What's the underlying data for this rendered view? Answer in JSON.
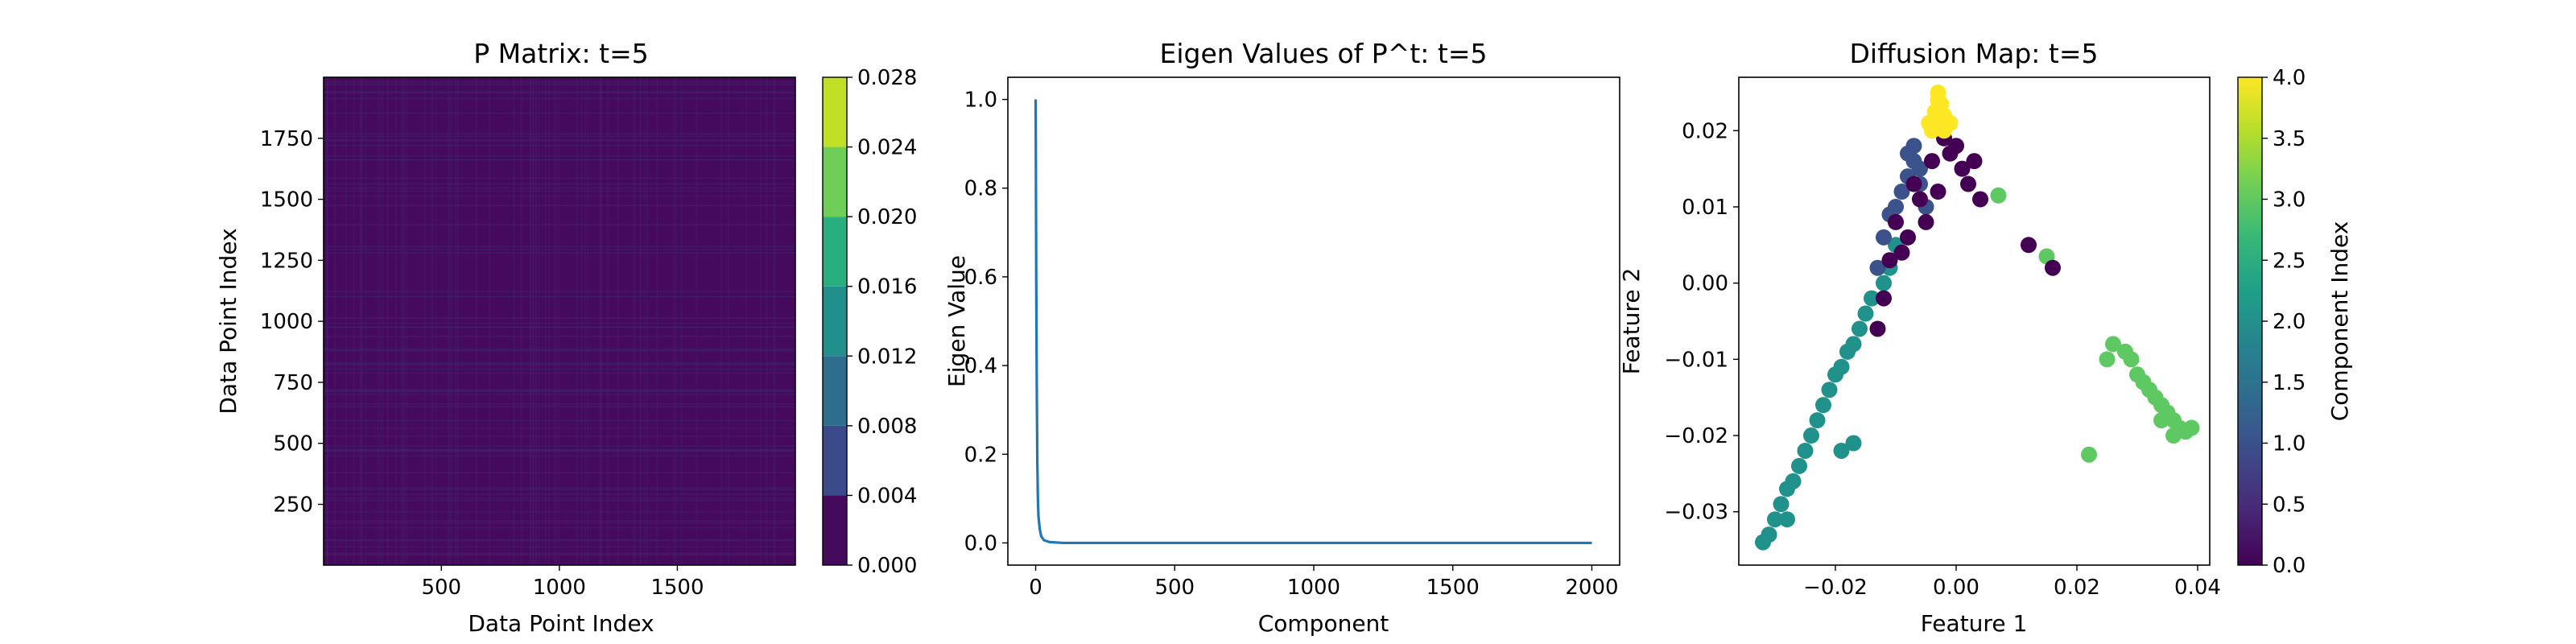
{
  "chart_data": [
    {
      "type": "heatmap",
      "title": "P Matrix: t=5",
      "xlabel": "Data Point Index",
      "ylabel": "Data Point Index",
      "xlim": [
        1,
        2000
      ],
      "ylim": [
        1,
        2000
      ],
      "xticks": [
        500,
        1000,
        1500
      ],
      "yticks": [
        250,
        500,
        750,
        1000,
        1250,
        1500,
        1750
      ],
      "matrix_size": 2000,
      "fill_value_range": [
        0.0,
        0.004
      ],
      "colorbar": {
        "label": "",
        "range": [
          0.0,
          0.028
        ],
        "levels": [
          0.0,
          0.004,
          0.008,
          0.012,
          0.016,
          0.02,
          0.024,
          0.028
        ],
        "tick_labels": [
          "0.000",
          "0.004",
          "0.008",
          "0.012",
          "0.016",
          "0.020",
          "0.024",
          "0.028"
        ],
        "colors": [
          "#450a5c",
          "#3a4a8a",
          "#2d6e8e",
          "#21908c",
          "#29af7f",
          "#6ece58",
          "#c1df24"
        ]
      }
    },
    {
      "type": "line",
      "title": "Eigen Values of P^t: t=5",
      "xlabel": "Component",
      "ylabel": "Eigen Value",
      "xlim": [
        -100,
        2100
      ],
      "ylim": [
        -0.05,
        1.05
      ],
      "xticks": [
        0,
        500,
        1000,
        1500,
        2000
      ],
      "yticks": [
        0.0,
        0.2,
        0.4,
        0.6,
        0.8,
        1.0
      ],
      "ytick_labels": [
        "0.0",
        "0.2",
        "0.4",
        "0.6",
        "0.8",
        "1.0"
      ],
      "color": "#1f77b4",
      "x": [
        0,
        2,
        4,
        6,
        8,
        10,
        15,
        20,
        30,
        50,
        100,
        500,
        1000,
        1500,
        2000
      ],
      "y": [
        1.0,
        0.6,
        0.35,
        0.18,
        0.1,
        0.06,
        0.03,
        0.015,
        0.006,
        0.002,
        0.0,
        0.0,
        0.0,
        0.0,
        0.0
      ]
    },
    {
      "type": "scatter",
      "title": "Diffusion Map: t=5",
      "xlabel": "Feature 1",
      "ylabel": "Feature 2",
      "xlim": [
        -0.036,
        0.042
      ],
      "ylim": [
        -0.037,
        0.027
      ],
      "xticks": [
        -0.02,
        0.0,
        0.02,
        0.04
      ],
      "xtick_labels": [
        "−0.02",
        "0.00",
        "0.02",
        "0.04"
      ],
      "yticks": [
        -0.03,
        -0.02,
        -0.01,
        0.0,
        0.01,
        0.02
      ],
      "ytick_labels": [
        "−0.03",
        "−0.02",
        "−0.01",
        "0.00",
        "0.01",
        "0.02"
      ],
      "series": [
        {
          "name": "0",
          "color": "#440154",
          "points": [
            [
              -0.004,
              0.016
            ],
            [
              -0.003,
              0.012
            ],
            [
              -0.001,
              0.017
            ],
            [
              0.001,
              0.015
            ],
            [
              0.002,
              0.013
            ],
            [
              0.004,
              0.011
            ],
            [
              -0.006,
              0.011
            ],
            [
              -0.005,
              0.008
            ],
            [
              -0.008,
              0.006
            ],
            [
              -0.01,
              0.008
            ],
            [
              -0.011,
              0.003
            ],
            [
              -0.012,
              -0.002
            ],
            [
              -0.013,
              -0.006
            ],
            [
              0.012,
              0.005
            ],
            [
              0.016,
              0.002
            ],
            [
              -0.002,
              0.019
            ],
            [
              0.0,
              0.018
            ],
            [
              -0.007,
              0.013
            ],
            [
              0.003,
              0.016
            ],
            [
              -0.009,
              0.004
            ]
          ]
        },
        {
          "name": "1",
          "color": "#3b528b",
          "points": [
            [
              -0.007,
              0.018
            ],
            [
              -0.006,
              0.015
            ],
            [
              -0.008,
              0.017
            ],
            [
              -0.009,
              0.012
            ],
            [
              -0.01,
              0.01
            ],
            [
              -0.012,
              0.006
            ],
            [
              -0.013,
              0.002
            ],
            [
              -0.011,
              0.009
            ],
            [
              -0.008,
              0.014
            ],
            [
              -0.006,
              0.013
            ],
            [
              -0.005,
              0.01
            ],
            [
              -0.007,
              0.016
            ]
          ]
        },
        {
          "name": "2",
          "color": "#21918c",
          "points": [
            [
              -0.032,
              -0.034
            ],
            [
              -0.031,
              -0.033
            ],
            [
              -0.03,
              -0.031
            ],
            [
              -0.029,
              -0.029
            ],
            [
              -0.028,
              -0.027
            ],
            [
              -0.027,
              -0.026
            ],
            [
              -0.026,
              -0.024
            ],
            [
              -0.025,
              -0.022
            ],
            [
              -0.024,
              -0.02
            ],
            [
              -0.023,
              -0.018
            ],
            [
              -0.022,
              -0.016
            ],
            [
              -0.021,
              -0.014
            ],
            [
              -0.02,
              -0.012
            ],
            [
              -0.019,
              -0.011
            ],
            [
              -0.018,
              -0.009
            ],
            [
              -0.017,
              -0.008
            ],
            [
              -0.016,
              -0.006
            ],
            [
              -0.015,
              -0.004
            ],
            [
              -0.014,
              -0.002
            ],
            [
              -0.012,
              0.0
            ],
            [
              -0.011,
              0.002
            ],
            [
              -0.01,
              0.005
            ],
            [
              -0.019,
              -0.022
            ],
            [
              -0.017,
              -0.021
            ],
            [
              -0.028,
              -0.031
            ]
          ]
        },
        {
          "name": "3",
          "color": "#5ec962",
          "points": [
            [
              0.026,
              -0.008
            ],
            [
              0.025,
              -0.01
            ],
            [
              0.028,
              -0.009
            ],
            [
              0.029,
              -0.01
            ],
            [
              0.03,
              -0.012
            ],
            [
              0.031,
              -0.013
            ],
            [
              0.032,
              -0.014
            ],
            [
              0.033,
              -0.015
            ],
            [
              0.034,
              -0.016
            ],
            [
              0.035,
              -0.017
            ],
            [
              0.036,
              -0.018
            ],
            [
              0.037,
              -0.019
            ],
            [
              0.038,
              -0.0195
            ],
            [
              0.039,
              -0.019
            ],
            [
              0.036,
              -0.02
            ],
            [
              0.022,
              -0.0225
            ],
            [
              0.015,
              0.0035
            ],
            [
              0.007,
              0.0115
            ],
            [
              0.034,
              -0.018
            ]
          ]
        },
        {
          "name": "4",
          "color": "#fde725",
          "points": [
            [
              -0.003,
              0.025
            ],
            [
              -0.0025,
              0.0235
            ],
            [
              -0.002,
              0.022
            ],
            [
              -0.003,
              0.021
            ],
            [
              -0.004,
              0.02
            ],
            [
              -0.002,
              0.02
            ],
            [
              -0.0035,
              0.0225
            ],
            [
              -0.001,
              0.021
            ],
            [
              -0.0045,
              0.021
            ],
            [
              -0.003,
              0.024
            ]
          ]
        }
      ],
      "colorbar": {
        "label": "Component Index",
        "range": [
          0.0,
          4.0
        ],
        "ticks": [
          0.0,
          0.5,
          1.0,
          1.5,
          2.0,
          2.5,
          3.0,
          3.5,
          4.0
        ],
        "tick_labels": [
          "0.0",
          "0.5",
          "1.0",
          "1.5",
          "2.0",
          "2.5",
          "3.0",
          "3.5",
          "4.0"
        ],
        "colors": [
          "#440154",
          "#482878",
          "#3e4989",
          "#31688e",
          "#26828e",
          "#1f9e89",
          "#35b779",
          "#6ece58",
          "#b5de2b",
          "#fde725"
        ]
      }
    }
  ]
}
